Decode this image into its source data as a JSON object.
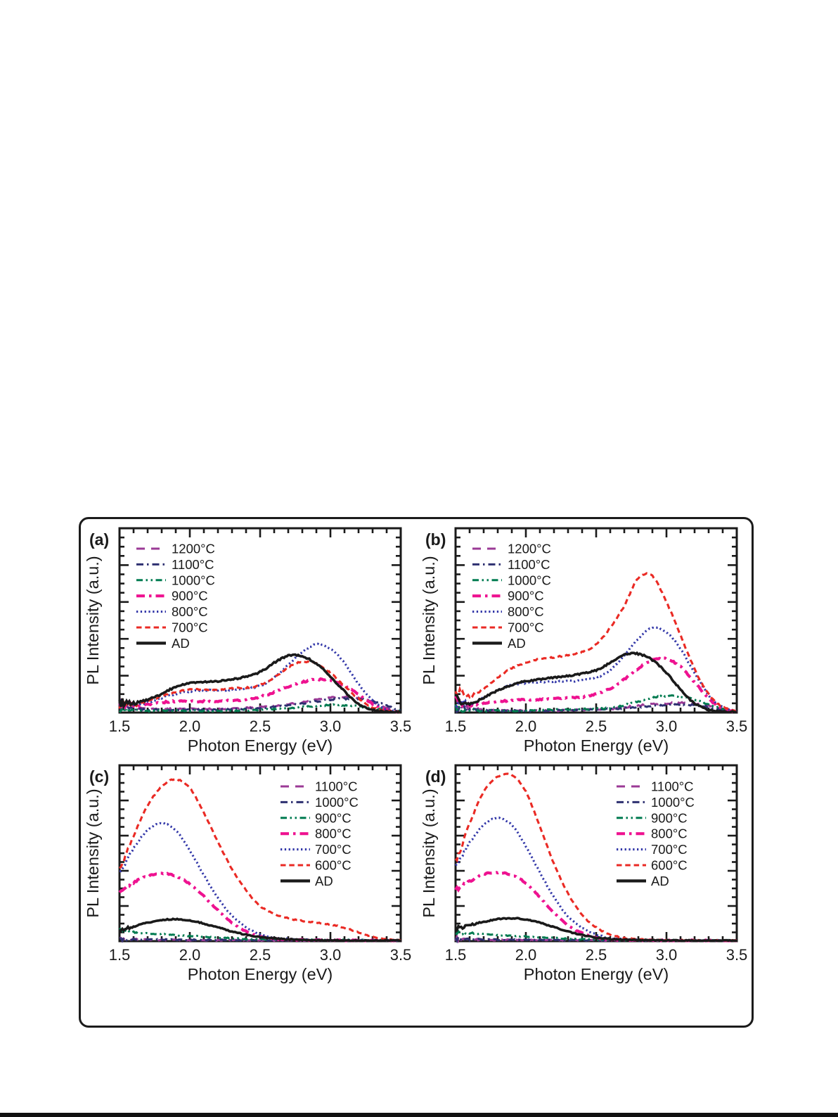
{
  "page": {
    "background": "#ffffff",
    "bottom_edge_bar_color": "#111111"
  },
  "figure": {
    "border_color": "#1b1b1b",
    "text_color": "#1a1a1a"
  },
  "chart_data": [
    {
      "id": "a",
      "type": "line",
      "panel_label": "(a)",
      "xlabel": "Photon Energy (eV)",
      "ylabel": "PL Intensity (a.u.)",
      "xlim": [
        1.5,
        3.5
      ],
      "ylim": [
        0,
        1
      ],
      "x_major_ticks": [
        1.5,
        2.0,
        2.5,
        3.0,
        3.5
      ],
      "x_tick_labels": [
        "1.5",
        "2.0",
        "2.5",
        "3.0",
        "3.5"
      ],
      "x_minor_tick_step": 0.1,
      "grid": false,
      "legend_position": "top-left",
      "series": [
        {
          "name": "1200°C",
          "color": "#9B3A96",
          "line_style": "dash",
          "x_start": 1.5,
          "x_step": 0.1,
          "values": [
            0.04,
            0.025,
            0.02,
            0.02,
            0.02,
            0.02,
            0.02,
            0.02,
            0.02,
            0.025,
            0.03,
            0.035,
            0.045,
            0.055,
            0.07,
            0.08,
            0.085,
            0.078,
            0.055,
            0.025,
            0.008
          ]
        },
        {
          "name": "1100°C",
          "color": "#2E3070",
          "line_style": "dashdot",
          "x_start": 1.5,
          "x_step": 0.1,
          "values": [
            0.035,
            0.02,
            0.015,
            0.015,
            0.015,
            0.015,
            0.015,
            0.015,
            0.018,
            0.02,
            0.025,
            0.03,
            0.04,
            0.05,
            0.06,
            0.07,
            0.075,
            0.074,
            0.062,
            0.038,
            0.012
          ]
        },
        {
          "name": "1000°C",
          "color": "#007B50",
          "line_style": "dashdotdot",
          "x_start": 1.5,
          "x_step": 0.1,
          "values": [
            0.02,
            0.013,
            0.01,
            0.01,
            0.01,
            0.01,
            0.01,
            0.01,
            0.01,
            0.012,
            0.015,
            0.02,
            0.025,
            0.03,
            0.035,
            0.04,
            0.04,
            0.034,
            0.024,
            0.014,
            0.007
          ]
        },
        {
          "name": "900°C",
          "color": "#EE1290",
          "line_style": "thickdashdot",
          "x_start": 1.5,
          "x_step": 0.1,
          "values": [
            0.055,
            0.04,
            0.045,
            0.055,
            0.06,
            0.06,
            0.06,
            0.06,
            0.065,
            0.07,
            0.085,
            0.11,
            0.14,
            0.165,
            0.18,
            0.174,
            0.148,
            0.098,
            0.048,
            0.015,
            0.005
          ]
        },
        {
          "name": "800°C",
          "color": "#3237A8",
          "line_style": "dot",
          "x_start": 1.5,
          "x_step": 0.1,
          "values": [
            0.05,
            0.04,
            0.055,
            0.08,
            0.1,
            0.115,
            0.12,
            0.12,
            0.125,
            0.13,
            0.145,
            0.19,
            0.26,
            0.33,
            0.37,
            0.345,
            0.27,
            0.155,
            0.065,
            0.018,
            0.005
          ]
        },
        {
          "name": "700°C",
          "color": "#EA2A24",
          "line_style": "shortdash",
          "x_start": 1.5,
          "x_step": 0.1,
          "values": [
            0.05,
            0.04,
            0.06,
            0.09,
            0.11,
            0.125,
            0.125,
            0.125,
            0.13,
            0.135,
            0.15,
            0.19,
            0.245,
            0.275,
            0.265,
            0.215,
            0.145,
            0.075,
            0.028,
            0.008,
            0.004
          ]
        },
        {
          "name": "AD",
          "color": "#1A1A1A",
          "line_style": "solid",
          "x_start": 1.5,
          "x_step": 0.1,
          "values": [
            0.055,
            0.05,
            0.07,
            0.1,
            0.14,
            0.16,
            0.165,
            0.17,
            0.18,
            0.195,
            0.22,
            0.27,
            0.308,
            0.305,
            0.265,
            0.195,
            0.115,
            0.048,
            0.014,
            0.005,
            0.004
          ]
        }
      ]
    },
    {
      "id": "b",
      "type": "line",
      "panel_label": "(b)",
      "xlabel": "Photon Energy (eV)",
      "ylabel": "PL Intensity (a.u.)",
      "xlim": [
        1.5,
        3.5
      ],
      "ylim": [
        0,
        1
      ],
      "x_major_ticks": [
        1.5,
        2.0,
        2.5,
        3.0,
        3.5
      ],
      "x_tick_labels": [
        "1.5",
        "2.0",
        "2.5",
        "3.0",
        "3.5"
      ],
      "x_minor_tick_step": 0.1,
      "grid": false,
      "legend_position": "top-left",
      "series": [
        {
          "name": "1200°C",
          "color": "#9B3A96",
          "line_style": "dash",
          "x_start": 1.5,
          "x_step": 0.1,
          "values": [
            0.04,
            0.025,
            0.015,
            0.01,
            0.01,
            0.01,
            0.01,
            0.01,
            0.012,
            0.015,
            0.018,
            0.02,
            0.028,
            0.038,
            0.045,
            0.05,
            0.054,
            0.048,
            0.038,
            0.02,
            0.008
          ]
        },
        {
          "name": "1100°C",
          "color": "#2E3070",
          "line_style": "dashdot",
          "x_start": 1.5,
          "x_step": 0.1,
          "values": [
            0.03,
            0.018,
            0.012,
            0.01,
            0.01,
            0.01,
            0.01,
            0.012,
            0.014,
            0.015,
            0.018,
            0.02,
            0.024,
            0.03,
            0.035,
            0.04,
            0.044,
            0.04,
            0.03,
            0.015,
            0.007
          ]
        },
        {
          "name": "1000°C",
          "color": "#007B50",
          "line_style": "dashdotdot",
          "x_start": 1.5,
          "x_step": 0.1,
          "values": [
            0.02,
            0.013,
            0.01,
            0.01,
            0.01,
            0.012,
            0.014,
            0.015,
            0.015,
            0.018,
            0.02,
            0.025,
            0.04,
            0.06,
            0.08,
            0.09,
            0.088,
            0.072,
            0.045,
            0.018,
            0.007
          ]
        },
        {
          "name": "900°C",
          "color": "#EE1290",
          "line_style": "thickdashdot",
          "x_start": 1.5,
          "x_step": 0.1,
          "values": [
            0.06,
            0.04,
            0.05,
            0.06,
            0.065,
            0.07,
            0.07,
            0.075,
            0.08,
            0.085,
            0.1,
            0.13,
            0.18,
            0.24,
            0.285,
            0.29,
            0.248,
            0.165,
            0.075,
            0.02,
            0.005
          ]
        },
        {
          "name": "800°C",
          "color": "#3237A8",
          "line_style": "dot",
          "x_start": 1.5,
          "x_step": 0.1,
          "values": [
            0.06,
            0.05,
            0.08,
            0.12,
            0.15,
            0.16,
            0.165,
            0.168,
            0.17,
            0.175,
            0.19,
            0.23,
            0.31,
            0.4,
            0.46,
            0.437,
            0.345,
            0.215,
            0.095,
            0.028,
            0.008
          ]
        },
        {
          "name": "700°C",
          "color": "#EA2A24",
          "line_style": "shortdash",
          "x_start": 1.5,
          "x_step": 0.1,
          "values": [
            0.12,
            0.09,
            0.13,
            0.19,
            0.24,
            0.27,
            0.29,
            0.3,
            0.31,
            0.33,
            0.37,
            0.46,
            0.58,
            0.73,
            0.74,
            0.6,
            0.42,
            0.235,
            0.1,
            0.03,
            0.01
          ]
        },
        {
          "name": "AD",
          "color": "#1A1A1A",
          "line_style": "solid",
          "x_start": 1.5,
          "x_step": 0.1,
          "values": [
            0.07,
            0.05,
            0.08,
            0.12,
            0.15,
            0.17,
            0.18,
            0.19,
            0.2,
            0.21,
            0.23,
            0.27,
            0.315,
            0.318,
            0.285,
            0.215,
            0.125,
            0.05,
            0.015,
            0.005,
            0.004
          ]
        }
      ]
    },
    {
      "id": "c",
      "type": "line",
      "panel_label": "(c)",
      "xlabel": "Photon Energy (eV)",
      "ylabel": "PL Intensity (a.u.)",
      "xlim": [
        1.5,
        3.5
      ],
      "ylim": [
        0,
        1
      ],
      "x_major_ticks": [
        1.5,
        2.0,
        2.5,
        3.0,
        3.5
      ],
      "x_tick_labels": [
        "1.5",
        "2.0",
        "2.5",
        "3.0",
        "3.5"
      ],
      "x_minor_tick_step": 0.1,
      "grid": false,
      "legend_position": "top-right",
      "series": [
        {
          "name": "1100°C",
          "color": "#9B3A96",
          "line_style": "dash",
          "x_start": 1.5,
          "x_step": 0.1,
          "values": [
            0.012,
            0.01,
            0.008,
            0.007,
            0.007,
            0.006,
            0.006,
            0.005,
            0.005,
            0.005,
            0.005,
            0.004,
            0.004,
            0.004,
            0.004,
            0.004,
            0.003,
            0.003,
            0.003,
            0.003,
            0.003
          ]
        },
        {
          "name": "1000°C",
          "color": "#2E3070",
          "line_style": "dashdot",
          "x_start": 1.5,
          "x_step": 0.1,
          "values": [
            0.015,
            0.012,
            0.01,
            0.009,
            0.008,
            0.008,
            0.007,
            0.007,
            0.006,
            0.006,
            0.006,
            0.005,
            0.005,
            0.005,
            0.005,
            0.004,
            0.004,
            0.004,
            0.004,
            0.004,
            0.004
          ]
        },
        {
          "name": "900°C",
          "color": "#007B50",
          "line_style": "dashdotdot",
          "x_start": 1.5,
          "x_step": 0.1,
          "values": [
            0.055,
            0.05,
            0.045,
            0.04,
            0.034,
            0.03,
            0.025,
            0.02,
            0.016,
            0.012,
            0.01,
            0.009,
            0.008,
            0.008,
            0.007,
            0.007,
            0.006,
            0.006,
            0.005,
            0.005,
            0.004
          ]
        },
        {
          "name": "800°C",
          "color": "#EE1290",
          "line_style": "thickdashdot",
          "x_start": 1.5,
          "x_step": 0.1,
          "values": [
            0.29,
            0.335,
            0.37,
            0.385,
            0.37,
            0.325,
            0.255,
            0.175,
            0.105,
            0.055,
            0.028,
            0.014,
            0.009,
            0.007,
            0.005,
            0.005,
            0.004,
            0.004,
            0.004,
            0.003,
            0.003
          ]
        },
        {
          "name": "700°C",
          "color": "#3237A8",
          "line_style": "dot",
          "x_start": 1.5,
          "x_step": 0.1,
          "values": [
            0.4,
            0.53,
            0.63,
            0.67,
            0.63,
            0.515,
            0.375,
            0.245,
            0.145,
            0.08,
            0.04,
            0.02,
            0.012,
            0.008,
            0.006,
            0.005,
            0.005,
            0.004,
            0.004,
            0.004,
            0.004
          ]
        },
        {
          "name": "600°C",
          "color": "#EA2A24",
          "line_style": "shortdash",
          "x_start": 1.5,
          "x_step": 0.1,
          "values": [
            0.42,
            0.6,
            0.77,
            0.88,
            0.92,
            0.87,
            0.73,
            0.565,
            0.41,
            0.29,
            0.2,
            0.155,
            0.13,
            0.115,
            0.105,
            0.095,
            0.075,
            0.05,
            0.025,
            0.01,
            0.005
          ]
        },
        {
          "name": "AD",
          "color": "#1A1A1A",
          "line_style": "solid",
          "x_start": 1.5,
          "x_step": 0.1,
          "values": [
            0.065,
            0.085,
            0.105,
            0.12,
            0.125,
            0.118,
            0.1,
            0.078,
            0.055,
            0.037,
            0.024,
            0.015,
            0.01,
            0.007,
            0.005,
            0.004,
            0.004,
            0.003,
            0.003,
            0.003,
            0.003
          ]
        }
      ]
    },
    {
      "id": "d",
      "type": "line",
      "panel_label": "(d)",
      "xlabel": "Photon Energy (eV)",
      "ylabel": "PL Intensity (a.u.)",
      "xlim": [
        1.5,
        3.5
      ],
      "ylim": [
        0,
        1
      ],
      "x_major_ticks": [
        1.5,
        2.0,
        2.5,
        3.0,
        3.5
      ],
      "x_tick_labels": [
        "1.5",
        "2.0",
        "2.5",
        "3.0",
        "3.5"
      ],
      "x_minor_tick_step": 0.1,
      "grid": false,
      "legend_position": "top-right",
      "series": [
        {
          "name": "1100°C",
          "color": "#9B3A96",
          "line_style": "dash",
          "x_start": 1.5,
          "x_step": 0.1,
          "values": [
            0.01,
            0.009,
            0.008,
            0.007,
            0.007,
            0.006,
            0.006,
            0.005,
            0.005,
            0.005,
            0.004,
            0.004,
            0.004,
            0.004,
            0.003,
            0.003,
            0.003,
            0.003,
            0.003,
            0.003,
            0.003
          ]
        },
        {
          "name": "1000°C",
          "color": "#2E3070",
          "line_style": "dashdot",
          "x_start": 1.5,
          "x_step": 0.1,
          "values": [
            0.012,
            0.01,
            0.009,
            0.008,
            0.008,
            0.007,
            0.007,
            0.006,
            0.006,
            0.005,
            0.005,
            0.005,
            0.005,
            0.004,
            0.004,
            0.004,
            0.004,
            0.004,
            0.003,
            0.003,
            0.003
          ]
        },
        {
          "name": "900°C",
          "color": "#007B50",
          "line_style": "dashdotdot",
          "x_start": 1.5,
          "x_step": 0.1,
          "values": [
            0.05,
            0.046,
            0.04,
            0.035,
            0.03,
            0.027,
            0.022,
            0.018,
            0.014,
            0.011,
            0.009,
            0.008,
            0.007,
            0.007,
            0.006,
            0.006,
            0.005,
            0.005,
            0.005,
            0.004,
            0.004
          ]
        },
        {
          "name": "800°C",
          "color": "#EE1290",
          "line_style": "thickdashdot",
          "x_start": 1.5,
          "x_step": 0.1,
          "values": [
            0.295,
            0.34,
            0.38,
            0.39,
            0.375,
            0.33,
            0.25,
            0.16,
            0.09,
            0.045,
            0.02,
            0.01,
            0.007,
            0.005,
            0.005,
            0.004,
            0.004,
            0.004,
            0.003,
            0.003,
            0.003
          ]
        },
        {
          "name": "700°C",
          "color": "#3237A8",
          "line_style": "dot",
          "x_start": 1.5,
          "x_step": 0.1,
          "values": [
            0.43,
            0.56,
            0.66,
            0.7,
            0.66,
            0.54,
            0.39,
            0.25,
            0.14,
            0.075,
            0.038,
            0.018,
            0.01,
            0.007,
            0.005,
            0.005,
            0.004,
            0.004,
            0.004,
            0.004,
            0.004
          ]
        },
        {
          "name": "600°C",
          "color": "#EA2A24",
          "line_style": "shortdash",
          "x_start": 1.5,
          "x_step": 0.1,
          "values": [
            0.46,
            0.67,
            0.85,
            0.935,
            0.945,
            0.85,
            0.65,
            0.44,
            0.27,
            0.15,
            0.078,
            0.038,
            0.018,
            0.01,
            0.007,
            0.005,
            0.005,
            0.004,
            0.004,
            0.004,
            0.004
          ]
        },
        {
          "name": "AD",
          "color": "#1A1A1A",
          "line_style": "solid",
          "x_start": 1.5,
          "x_step": 0.1,
          "values": [
            0.07,
            0.09,
            0.11,
            0.125,
            0.13,
            0.124,
            0.105,
            0.08,
            0.055,
            0.035,
            0.02,
            0.012,
            0.008,
            0.006,
            0.005,
            0.004,
            0.004,
            0.003,
            0.003,
            0.003,
            0.003
          ]
        }
      ]
    }
  ]
}
